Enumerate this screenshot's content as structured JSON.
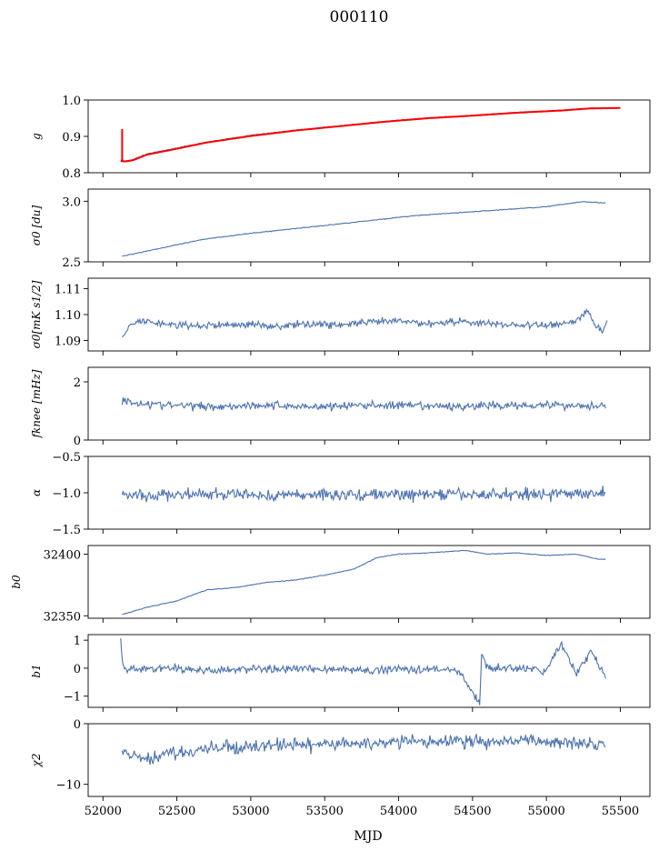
{
  "figure": {
    "title": "000110",
    "xlabel": "MJD"
  },
  "chart_data": {
    "type": "line",
    "title": "000110",
    "xlabel": "MJD",
    "xlim": [
      51900,
      55700
    ],
    "x_ticks": [
      52000,
      52500,
      53000,
      53500,
      54000,
      54500,
      55000,
      55500
    ],
    "panels": [
      {
        "ylabel": "g",
        "ylim": [
          0.8,
          1.0
        ],
        "yticks": [
          0.8,
          0.9,
          1.0
        ],
        "ytick_labels": [
          "0.8",
          "0.9",
          "1.0"
        ],
        "series": [
          {
            "color": "#4c72b0",
            "x": [
              52120,
              52150,
              52200,
              52300,
              52500,
              52700,
              53000,
              53300,
              53600,
              53900,
              54200,
              54500,
              54800,
              55100,
              55300,
              55420
            ],
            "y": [
              0.835,
              0.832,
              0.836,
              0.852,
              0.868,
              0.884,
              0.903,
              0.917,
              0.929,
              0.941,
              0.951,
              0.958,
              0.966,
              0.972,
              0.978,
              0.978
            ]
          },
          {
            "color": "#ff0000",
            "x": [
              52120,
              52150,
              52200,
              52300,
              52500,
              52700,
              53000,
              53300,
              53600,
              53900,
              54200,
              54500,
              54800,
              55100,
              55300,
              55500
            ],
            "y": [
              0.832,
              0.831,
              0.834,
              0.85,
              0.866,
              0.883,
              0.901,
              0.916,
              0.928,
              0.94,
              0.95,
              0.957,
              0.965,
              0.971,
              0.977,
              0.978
            ]
          }
        ]
      },
      {
        "ylabel": "σ0 [du]",
        "ylim": [
          2.5,
          3.1
        ],
        "yticks": [
          2.5,
          3.0
        ],
        "ytick_labels": [
          "2.5",
          "3.0"
        ],
        "series": [
          {
            "color": "#4c72b0",
            "x": [
              52130,
              52300,
              52500,
              52700,
              53000,
              53300,
              53500,
              53800,
              54100,
              54400,
              54700,
              55000,
              55250,
              55400
            ],
            "y": [
              2.546,
              2.59,
              2.64,
              2.69,
              2.735,
              2.775,
              2.8,
              2.84,
              2.88,
              2.905,
              2.93,
              2.955,
              2.998,
              2.985
            ]
          }
        ]
      },
      {
        "ylabel": "σ0[mK s1/2]",
        "ylim": [
          1.086,
          1.114
        ],
        "yticks": [
          1.09,
          1.1,
          1.11
        ],
        "ytick_labels": [
          "1.09",
          "1.10",
          "1.11"
        ],
        "series": [
          {
            "color": "#4c72b0",
            "x": [
              52130,
              52180,
              52250,
              52400,
              52600,
              52800,
              53000,
              53200,
              53400,
              53600,
              53800,
              54000,
              54200,
              54400,
              54600,
              54800,
              55000,
              55200,
              55280,
              55330,
              55380,
              55410
            ],
            "y": [
              1.0905,
              1.0955,
              1.0975,
              1.0965,
              1.0955,
              1.096,
              1.0962,
              1.0955,
              1.0965,
              1.096,
              1.097,
              1.0975,
              1.0965,
              1.0975,
              1.0965,
              1.096,
              1.0958,
              1.0975,
              1.1015,
              1.096,
              1.0935,
              1.098
            ]
          }
        ]
      },
      {
        "ylabel": "fknee [mHz]",
        "ylim": [
          0,
          2.5
        ],
        "yticks": [
          0,
          2
        ],
        "ytick_labels": [
          "0",
          "2"
        ],
        "series": [
          {
            "color": "#4c72b0",
            "x": [
              52130,
              52200,
              52400,
              52600,
              52800,
              53000,
              53200,
              53400,
              53600,
              53800,
              54000,
              54200,
              54400,
              54600,
              54800,
              55000,
              55200,
              55400
            ],
            "y": [
              1.35,
              1.3,
              1.2,
              1.18,
              1.15,
              1.2,
              1.18,
              1.15,
              1.17,
              1.2,
              1.18,
              1.16,
              1.15,
              1.18,
              1.2,
              1.22,
              1.18,
              1.2
            ]
          }
        ]
      },
      {
        "ylabel": "α",
        "ylim": [
          -1.5,
          -0.5
        ],
        "yticks": [
          -1.5,
          -1.0,
          -0.5
        ],
        "ytick_labels": [
          "−1.5",
          "−1.0",
          "−0.5"
        ],
        "series": [
          {
            "color": "#4c72b0",
            "x": [
              52130,
              52300,
              52500,
              52700,
              52900,
              53100,
              53300,
              53500,
              53700,
              53900,
              54100,
              54300,
              54500,
              54700,
              54900,
              55100,
              55300,
              55400
            ],
            "y": [
              -1.02,
              -1.05,
              -1.02,
              -1.03,
              -1.02,
              -1.04,
              -1.03,
              -1.02,
              -1.03,
              -1.02,
              -1.03,
              -1.02,
              -1.03,
              -1.02,
              -1.01,
              -1.02,
              -1.0,
              -1.0
            ]
          }
        ]
      },
      {
        "ylabel": "b0",
        "ylim": [
          32348,
          32407
        ],
        "yticks": [
          32350,
          32400
        ],
        "ytick_labels": [
          "32350",
          "32400"
        ],
        "series": [
          {
            "color": "#4c72b0",
            "x": [
              52130,
              52300,
              52500,
              52700,
              52900,
              53100,
              53300,
              53500,
              53700,
              53850,
              54000,
              54200,
              54450,
              54600,
              54800,
              55000,
              55200,
              55350,
              55400
            ],
            "y": [
              32351,
              32357,
              32362,
              32371,
              32373,
              32377,
              32379,
              32383,
              32388,
              32397,
              32400,
              32401,
              32403,
              32400,
              32401,
              32399,
              32400,
              32396,
              32396
            ]
          }
        ]
      },
      {
        "ylabel": "b1",
        "ylim": [
          -1.4,
          1.2
        ],
        "yticks": [
          -1,
          0,
          1
        ],
        "ytick_labels": [
          "−1",
          "0",
          "1"
        ],
        "series": [
          {
            "color": "#4c72b0",
            "x": [
              52120,
              52135,
              52200,
              52400,
              52600,
              52800,
              53000,
              53200,
              53400,
              53600,
              53800,
              54000,
              54200,
              54400,
              54550,
              54560,
              54600,
              54800,
              55000,
              55100,
              55200,
              55300,
              55400
            ],
            "y": [
              1.0,
              0.0,
              -0.05,
              0.0,
              -0.05,
              -0.1,
              0.0,
              -0.05,
              0.0,
              -0.05,
              -0.1,
              0.0,
              -0.05,
              -0.05,
              -1.3,
              0.5,
              0.0,
              0.0,
              -0.1,
              0.9,
              -0.2,
              0.6,
              -0.3
            ]
          }
        ]
      },
      {
        "ylabel": "χ2",
        "ylim": [
          -12,
          0
        ],
        "yticks": [
          -10,
          0
        ],
        "ytick_labels": [
          "−10",
          "0"
        ],
        "series": [
          {
            "color": "#4c72b0",
            "x": [
              52130,
              52200,
              52300,
              52400,
              52600,
              52800,
              53000,
              53200,
              53400,
              53600,
              53800,
              54000,
              54200,
              54400,
              54600,
              54800,
              55000,
              55200,
              55400
            ],
            "y": [
              -4.5,
              -5.5,
              -6.0,
              -5.0,
              -4.5,
              -4.0,
              -3.8,
              -3.5,
              -3.5,
              -3.4,
              -3.2,
              -3.0,
              -3.0,
              -2.8,
              -3.0,
              -2.8,
              -3.0,
              -3.0,
              -3.2
            ]
          }
        ]
      }
    ]
  }
}
